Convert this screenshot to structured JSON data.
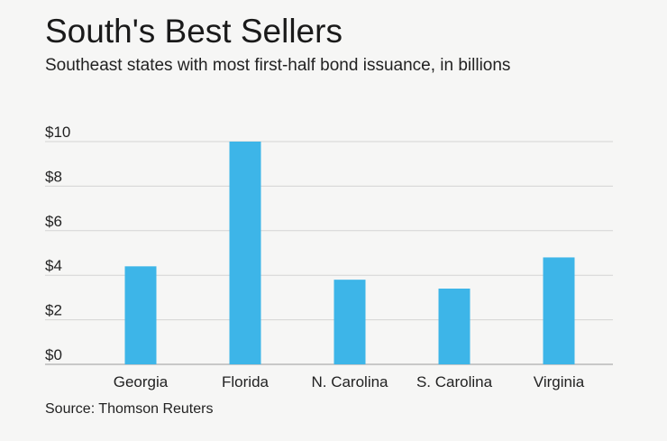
{
  "header": {
    "title": "South's Best Sellers",
    "subtitle": "Southeast states with most first-half bond issuance, in billions"
  },
  "footer": {
    "source": "Source: Thomson Reuters"
  },
  "colors": {
    "bar": "#3db5e8",
    "grid": "#d4d4d4",
    "axis": "#9a9a9a",
    "background": "#f6f6f5"
  },
  "chart_data": {
    "type": "bar",
    "title": "South's Best Sellers",
    "subtitle": "Southeast states with most first-half bond issuance, in billions",
    "categories": [
      "Georgia",
      "Florida",
      "N. Carolina",
      "S. Carolina",
      "Virginia"
    ],
    "values": [
      4.4,
      10.0,
      3.8,
      3.4,
      4.8
    ],
    "ylim": [
      0,
      10
    ],
    "yticks": [
      0,
      2,
      4,
      6,
      8,
      10
    ],
    "ytick_labels": [
      "$0",
      "$2",
      "$4",
      "$6",
      "$8",
      "$10"
    ],
    "grid": true,
    "legend": "none"
  }
}
